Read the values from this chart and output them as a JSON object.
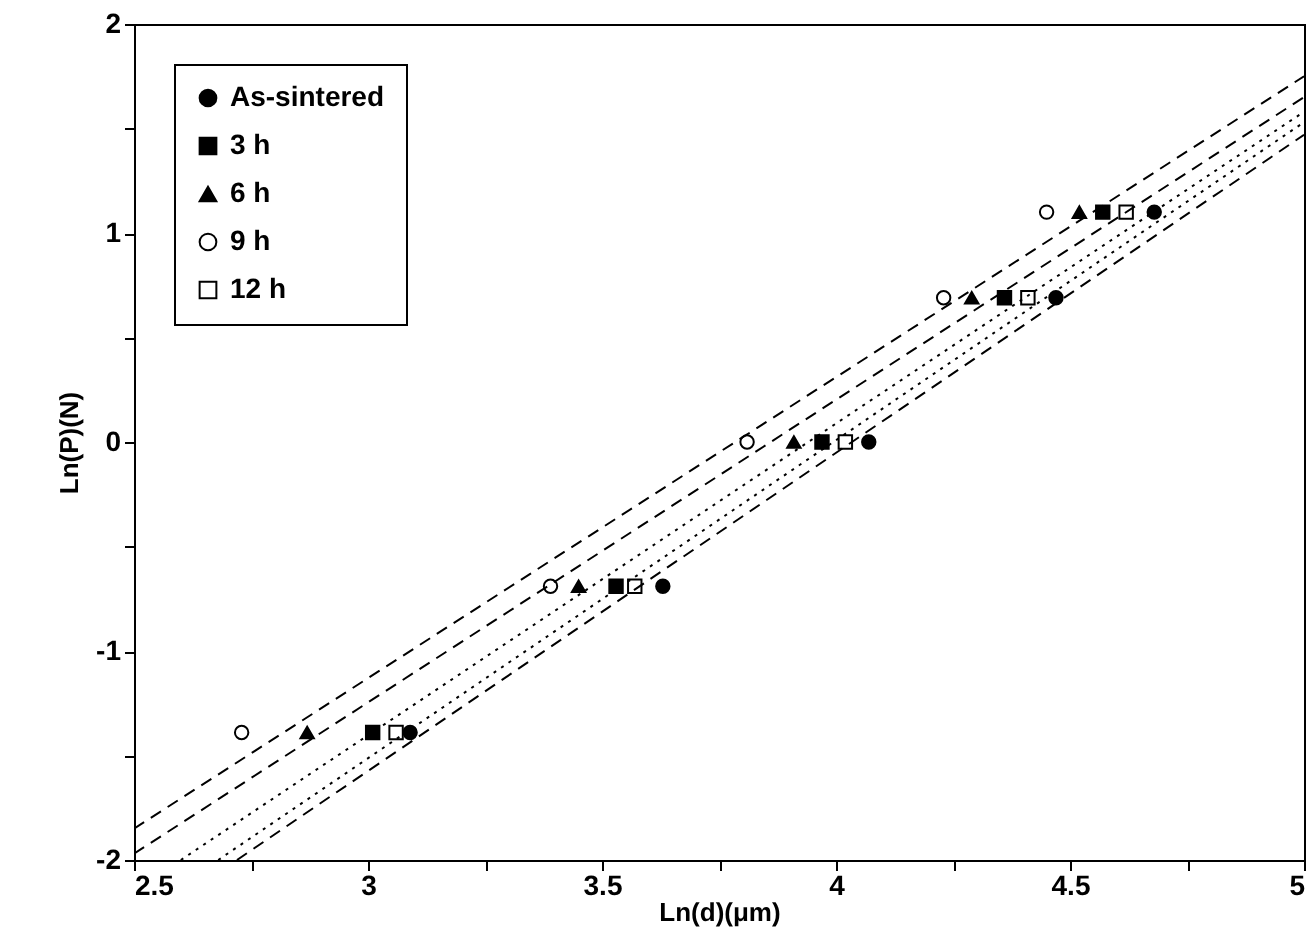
{
  "chart_data": {
    "type": "scatter",
    "xlabel": "Ln(d)(μm)",
    "ylabel": "Ln(P)(N)",
    "xlim": [
      2.5,
      5
    ],
    "ylim": [
      -2,
      2
    ],
    "xticks": [
      2.5,
      {
        "value": 2.75,
        "label": null
      },
      3,
      {
        "value": 3.25,
        "label": null
      },
      3.5,
      {
        "value": 3.75,
        "label": null
      },
      4,
      {
        "value": 4.25,
        "label": null
      },
      4.5,
      {
        "value": 4.75,
        "label": null
      },
      5
    ],
    "yticks": [
      -2,
      {
        "value": -1.5,
        "label": null
      },
      -1,
      {
        "value": -0.5,
        "label": null
      },
      0,
      {
        "value": 0.5,
        "label": null
      },
      1,
      {
        "value": 1.5,
        "label": null
      },
      2
    ],
    "grid": false,
    "legend": "top left",
    "series": [
      {
        "name": "As-sintered",
        "color": "#000000",
        "marker": "circle",
        "x": [
          3.09,
          3.63,
          4.07,
          4.47,
          4.68
        ],
        "values": [
          -1.39,
          -0.69,
          0,
          0.69,
          1.1
        ]
      },
      {
        "name": "3 h",
        "color": "#000000",
        "marker": "square",
        "x": [
          3.01,
          3.53,
          3.97,
          4.36,
          4.57
        ],
        "values": [
          -1.39,
          -0.69,
          0,
          0.69,
          1.1
        ]
      },
      {
        "name": "6 h",
        "color": "#000000",
        "marker": "triangle",
        "x": [
          2.87,
          3.45,
          3.91,
          4.29,
          4.52
        ],
        "values": [
          -1.39,
          -0.69,
          0,
          0.69,
          1.1
        ]
      },
      {
        "name": "9 h",
        "color": "#000000",
        "marker": "circle",
        "x": [
          2.73,
          3.39,
          3.81,
          4.23,
          4.45
        ],
        "values": [
          -1.39,
          -0.69,
          0,
          0.69,
          1.1
        ]
      },
      {
        "name": "12 h",
        "color": "#000000",
        "marker": "square",
        "x": [
          3.06,
          3.57,
          4.02,
          4.41,
          4.62
        ],
        "values": [
          -1.39,
          -0.69,
          0,
          0.69,
          1.1
        ]
      },
      {
        "type": "line",
        "color": "#000000",
        "line_style": "dashed",
        "x": [
          2.72,
          5
        ],
        "values": [
          -2,
          1.47
        ]
      },
      {
        "type": "line",
        "color": "#000000",
        "line_style": "dotted",
        "x": [
          2.6,
          5
        ],
        "values": [
          -2,
          1.58
        ]
      },
      {
        "type": "line",
        "color": "#000000",
        "line_style": "dashed",
        "x": [
          2.5,
          5
        ],
        "values": [
          -1.97,
          1.65
        ]
      },
      {
        "type": "line",
        "color": "#000000",
        "line_style": "dashed",
        "x": [
          2.5,
          5
        ],
        "values": [
          -1.85,
          1.75
        ]
      },
      {
        "type": "line",
        "color": "#000000",
        "line_style": "dotted",
        "x": [
          2.68,
          5
        ],
        "values": [
          -2,
          1.53
        ]
      }
    ]
  }
}
